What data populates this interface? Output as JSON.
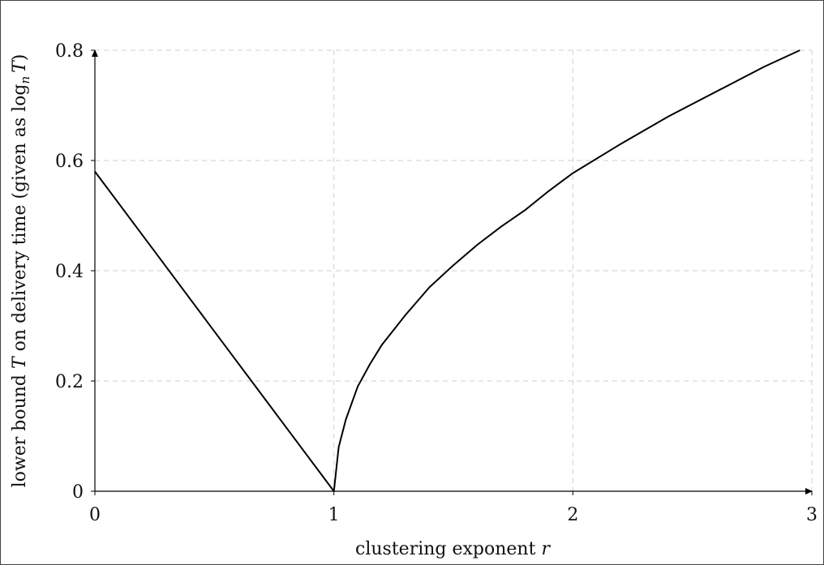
{
  "chart_data": {
    "type": "line",
    "title": "",
    "xlabel": "clustering exponent",
    "xlabel_var": "r",
    "ylabel_text": "lower bound",
    "ylabel_var": "T",
    "ylabel_rest": "on delivery time (given as log",
    "ylabel_sub": "n",
    "ylabel_var2": "T",
    "ylabel_close": ")",
    "xlim": [
      0,
      3
    ],
    "ylim": [
      0,
      0.8
    ],
    "xticks": [
      0,
      1,
      2,
      3
    ],
    "yticks": [
      0,
      0.2,
      0.4,
      0.6,
      0.8
    ],
    "xtick_labels": [
      "0",
      "1",
      "2",
      "3"
    ],
    "ytick_labels": [
      "0",
      "0.2",
      "0.4",
      "0.6",
      "0.8"
    ],
    "grid": true,
    "series": [
      {
        "color": "#000000",
        "x": [
          0,
          0.25,
          0.5,
          0.75,
          1.0,
          1.02,
          1.05,
          1.1,
          1.15,
          1.2,
          1.3,
          1.4,
          1.5,
          1.6,
          1.7,
          1.8,
          1.9,
          2.0,
          2.2,
          2.4,
          2.6,
          2.8,
          2.95
        ],
        "y": [
          0.58,
          0.435,
          0.29,
          0.145,
          0.0,
          0.08,
          0.13,
          0.19,
          0.23,
          0.265,
          0.32,
          0.37,
          0.41,
          0.447,
          0.48,
          0.51,
          0.545,
          0.577,
          0.63,
          0.68,
          0.725,
          0.77,
          0.8
        ]
      }
    ]
  }
}
